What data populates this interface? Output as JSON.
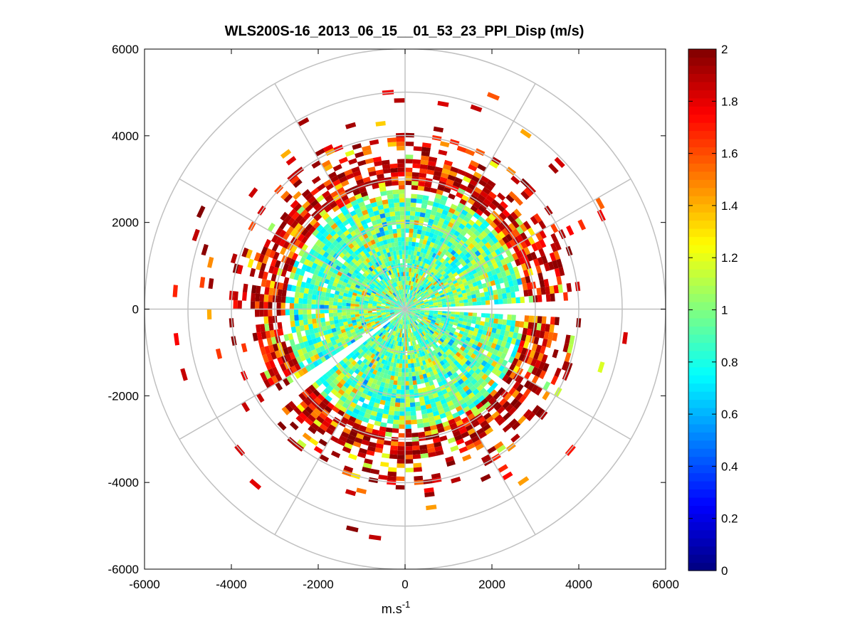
{
  "chart_data": {
    "type": "heatmap",
    "subtype": "polar-ppi",
    "title": "WLS200S-16_2013_06_15__01_53_23_PPI_Disp (m/s)",
    "xlabel": "m.s",
    "xlabel_sup": "-1",
    "ylabel": "",
    "xlim": [
      -6000,
      6000
    ],
    "ylim": [
      -6000,
      6000
    ],
    "xticks": [
      "-6000",
      "-4000",
      "-2000",
      "0",
      "2000",
      "4000",
      "6000"
    ],
    "yticks": [
      "6000",
      "4000",
      "2000",
      "0",
      "-2000",
      "-4000",
      "-6000"
    ],
    "xtick_values": [
      -6000,
      -4000,
      -2000,
      0,
      2000,
      4000,
      6000
    ],
    "ytick_values": [
      6000,
      4000,
      2000,
      0,
      -2000,
      -4000,
      -6000
    ],
    "polar_grid": {
      "ring_radii": [
        1000,
        2000,
        3000,
        4000,
        5000,
        6000
      ],
      "spoke_angles_deg": [
        0,
        30,
        60,
        90,
        120,
        150,
        180,
        210,
        240,
        270,
        300,
        330
      ]
    },
    "colorbar": {
      "colormap": "jet",
      "range": [
        0,
        2
      ],
      "ticks": [
        "2",
        "1.8",
        "1.6",
        "1.4",
        "1.2",
        "1",
        "0.8",
        "0.6",
        "0.4",
        "0.2",
        "0"
      ],
      "tick_values": [
        2,
        1.8,
        1.6,
        1.4,
        1.2,
        1,
        0.8,
        0.6,
        0.4,
        0.2,
        0
      ]
    },
    "data_summary": {
      "max_range_m": 5300,
      "dense_core_radius_m": 3000,
      "core_value_range": [
        0.7,
        1.2
      ],
      "outer_value_range": [
        1.4,
        2.0
      ],
      "blank_sectors_deg": [
        [
          87,
          93
        ],
        [
          230,
          236
        ]
      ]
    }
  },
  "colors": {
    "grid": "#c0c0c0",
    "axis": "#000000",
    "background": "#ffffff"
  }
}
